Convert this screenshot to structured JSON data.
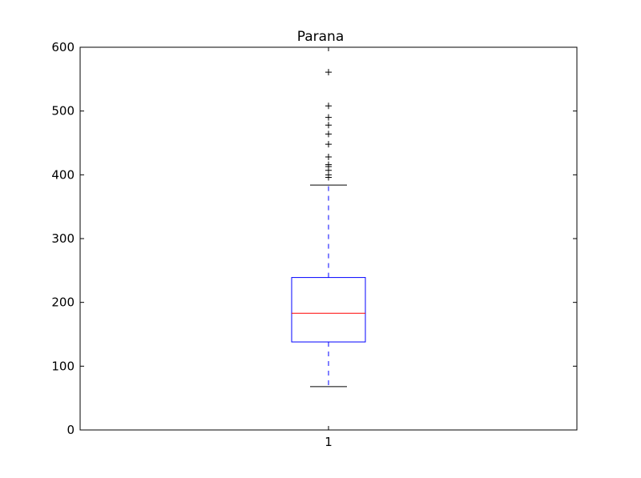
{
  "chart_data": {
    "type": "box",
    "title": "Parana",
    "xlabel": "",
    "ylabel": "",
    "categories": [
      "1"
    ],
    "ylim": [
      0,
      600
    ],
    "yticks": [
      0,
      100,
      200,
      300,
      400,
      500,
      600
    ],
    "grid": false,
    "boxes": [
      {
        "label": "1",
        "whisker_low": 68,
        "q1": 138,
        "median": 183,
        "q3": 239,
        "whisker_high": 384,
        "outliers": [
          396,
          400,
          407,
          413,
          416,
          428,
          448,
          464,
          478,
          490,
          508,
          561
        ]
      }
    ],
    "colors": {
      "box": "#0000ff",
      "median": "#ff0000",
      "whisker": "#0000ff",
      "cap": "#000000",
      "outlier": "#000000"
    }
  }
}
